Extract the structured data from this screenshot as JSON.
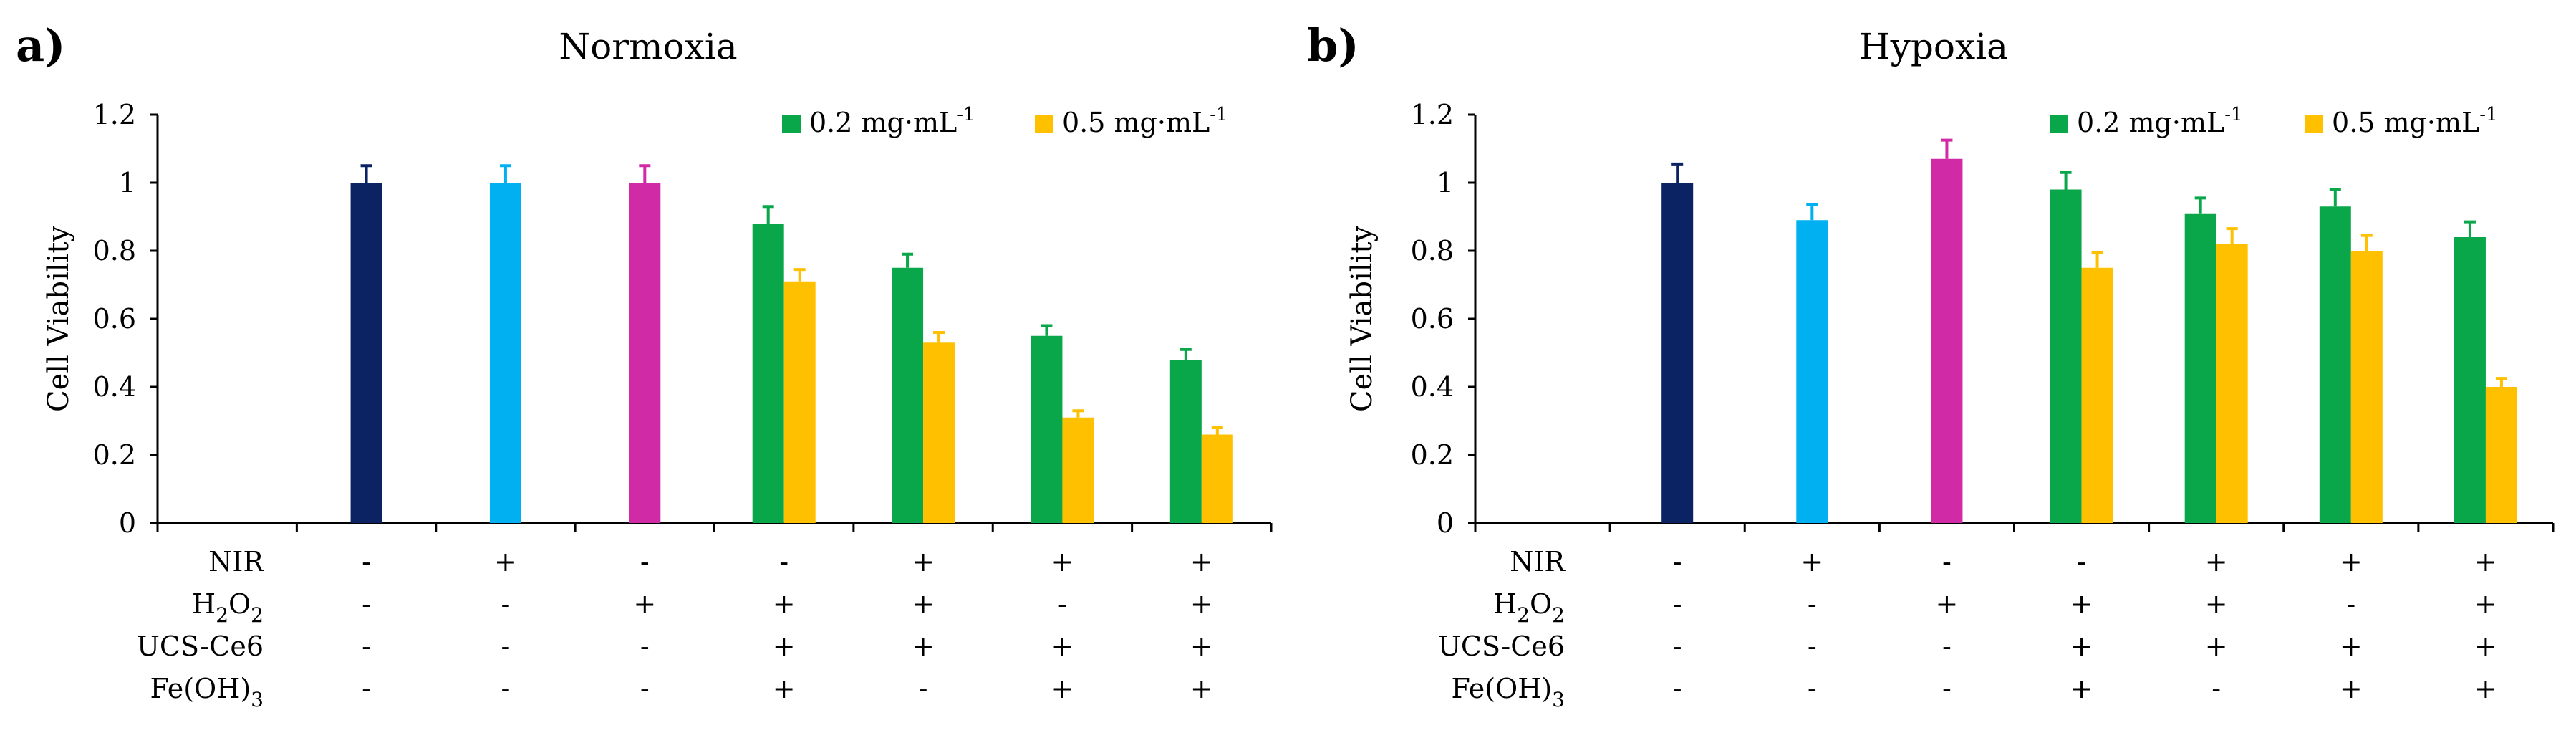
{
  "legend": [
    {
      "label": "0.2 mg·mL",
      "sup": "-1",
      "color": "#0aa64a"
    },
    {
      "label": "0.5 mg·mL",
      "sup": "-1",
      "color": "#ffc000"
    }
  ],
  "colors": {
    "control": "#0b2263",
    "nir": "#00b0f0",
    "h2o2": "#d02aa6",
    "low": "#0aa64a",
    "high": "#ffc000",
    "errorbar_low": "#0aa64a",
    "errorbar_high": "#ffc000"
  },
  "condition_rows": [
    {
      "key": "NIR",
      "parts": [
        {
          "t": "NIR"
        }
      ]
    },
    {
      "key": "H2O2",
      "parts": [
        {
          "t": "H"
        },
        {
          "t": "2",
          "sub": true
        },
        {
          "t": "O"
        },
        {
          "t": "2",
          "sub": true
        }
      ]
    },
    {
      "key": "UCS-Ce6",
      "parts": [
        {
          "t": "UCS-Ce6"
        }
      ]
    },
    {
      "key": "FeOH3",
      "parts": [
        {
          "t": "Fe(OH)"
        },
        {
          "t": "3",
          "sub": true
        }
      ]
    }
  ],
  "chart_data": [
    {
      "panel_label": "a)",
      "type": "bar",
      "title": "Normoxia",
      "ylabel": "Cell Viability",
      "xlabel": "",
      "ylim": [
        0,
        1.2
      ],
      "yticks": [
        "0",
        "0.2",
        "0.4",
        "0.6",
        "0.8",
        "1",
        "1.2"
      ],
      "legend_position": "top-right",
      "conditions": {
        "NIR": [
          "-",
          "+",
          "-",
          "-",
          "+",
          "+",
          "+"
        ],
        "H2O2": [
          "-",
          "-",
          "+",
          "+",
          "+",
          "-",
          "+"
        ],
        "UCS-Ce6": [
          "-",
          "-",
          "-",
          "+",
          "+",
          "+",
          "+"
        ],
        "FeOH3": [
          "-",
          "-",
          "-",
          "+",
          "-",
          "+",
          "+"
        ]
      },
      "groups": [
        {
          "bars": [
            {
              "value": 1.0,
              "error": 0.05,
              "color_key": "control"
            }
          ]
        },
        {
          "bars": [
            {
              "value": 1.0,
              "error": 0.05,
              "color_key": "nir"
            }
          ]
        },
        {
          "bars": [
            {
              "value": 1.0,
              "error": 0.05,
              "color_key": "h2o2"
            }
          ]
        },
        {
          "bars": [
            {
              "value": 0.88,
              "error": 0.05,
              "color_key": "low"
            },
            {
              "value": 0.71,
              "error": 0.035,
              "color_key": "high"
            }
          ]
        },
        {
          "bars": [
            {
              "value": 0.75,
              "error": 0.04,
              "color_key": "low"
            },
            {
              "value": 0.53,
              "error": 0.03,
              "color_key": "high"
            }
          ]
        },
        {
          "bars": [
            {
              "value": 0.55,
              "error": 0.03,
              "color_key": "low"
            },
            {
              "value": 0.31,
              "error": 0.02,
              "color_key": "high"
            }
          ]
        },
        {
          "bars": [
            {
              "value": 0.48,
              "error": 0.03,
              "color_key": "low"
            },
            {
              "value": 0.26,
              "error": 0.02,
              "color_key": "high"
            }
          ]
        }
      ]
    },
    {
      "panel_label": "b)",
      "type": "bar",
      "title": "Hypoxia",
      "ylabel": "Cell Viability",
      "xlabel": "",
      "ylim": [
        0,
        1.2
      ],
      "yticks": [
        "0",
        "0.2",
        "0.4",
        "0.6",
        "0.8",
        "1",
        "1.2"
      ],
      "legend_position": "top-right",
      "conditions": {
        "NIR": [
          "-",
          "+",
          "-",
          "-",
          "+",
          "+",
          "+"
        ],
        "H2O2": [
          "-",
          "-",
          "+",
          "+",
          "+",
          "-",
          "+"
        ],
        "UCS-Ce6": [
          "-",
          "-",
          "-",
          "+",
          "+",
          "+",
          "+"
        ],
        "FeOH3": [
          "-",
          "-",
          "-",
          "+",
          "-",
          "+",
          "+"
        ]
      },
      "groups": [
        {
          "bars": [
            {
              "value": 1.0,
              "error": 0.055,
              "color_key": "control"
            }
          ]
        },
        {
          "bars": [
            {
              "value": 0.89,
              "error": 0.045,
              "color_key": "nir"
            }
          ]
        },
        {
          "bars": [
            {
              "value": 1.07,
              "error": 0.055,
              "color_key": "h2o2"
            }
          ]
        },
        {
          "bars": [
            {
              "value": 0.98,
              "error": 0.05,
              "color_key": "low"
            },
            {
              "value": 0.75,
              "error": 0.045,
              "color_key": "high"
            }
          ]
        },
        {
          "bars": [
            {
              "value": 0.91,
              "error": 0.045,
              "color_key": "low"
            },
            {
              "value": 0.82,
              "error": 0.045,
              "color_key": "high"
            }
          ]
        },
        {
          "bars": [
            {
              "value": 0.93,
              "error": 0.05,
              "color_key": "low"
            },
            {
              "value": 0.8,
              "error": 0.045,
              "color_key": "high"
            }
          ]
        },
        {
          "bars": [
            {
              "value": 0.84,
              "error": 0.045,
              "color_key": "low"
            },
            {
              "value": 0.4,
              "error": 0.025,
              "color_key": "high"
            }
          ]
        }
      ]
    }
  ]
}
